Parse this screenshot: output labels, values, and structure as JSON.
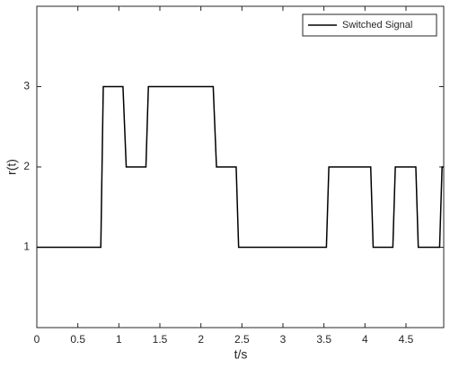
{
  "chart_data": {
    "type": "line",
    "xlabel": "t/s",
    "ylabel": "r(t)",
    "x": [
      0,
      0.78,
      0.81,
      1.05,
      1.09,
      1.33,
      1.36,
      2.15,
      2.19,
      2.43,
      2.46,
      3.53,
      3.56,
      4.07,
      4.1,
      4.34,
      4.37,
      4.62,
      4.65,
      4.91,
      4.94,
      4.96
    ],
    "series": [
      {
        "name": "Switched Signal",
        "color": "#000000",
        "values": [
          1,
          1,
          3,
          3,
          2,
          2,
          3,
          3,
          2,
          2,
          1,
          1,
          2,
          2,
          1,
          1,
          2,
          2,
          1,
          1,
          2,
          2
        ]
      }
    ],
    "xlim": [
      0,
      4.96
    ],
    "xticks": [
      0,
      0.5,
      1,
      1.5,
      2,
      2.5,
      3,
      3.5,
      4,
      4.5
    ],
    "ylim": [
      0,
      4
    ],
    "yticks": [
      1,
      2,
      3
    ],
    "grid": false,
    "legend": "upper-right"
  }
}
